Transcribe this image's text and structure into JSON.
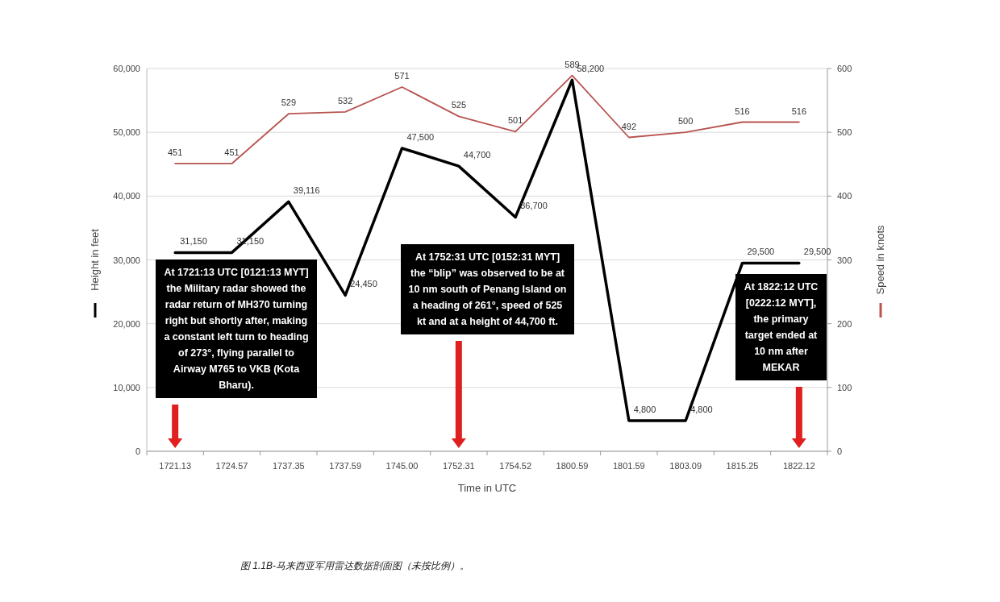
{
  "chart_data": {
    "type": "line",
    "categories": [
      "1721.13",
      "1724.57",
      "1737.35",
      "1737.59",
      "1745.00",
      "1752.31",
      "1754.52",
      "1800.59",
      "1801.59",
      "1803.09",
      "1815.25",
      "1822.12"
    ],
    "series": [
      {
        "type": "line",
        "color": "#000000",
        "axis": "y",
        "values": [
          31150,
          31150,
          39116,
          24450,
          47500,
          44700,
          36700,
          58200,
          4800,
          4800,
          29500,
          29500
        ],
        "value_labels": [
          "31,150",
          "31,150",
          "39,116",
          "24,450",
          "47,500",
          "44,700",
          "36,700",
          "58,200",
          "4,800",
          "4,800",
          "29,500",
          "29,500"
        ]
      },
      {
        "type": "line",
        "color": "#b85450",
        "axis": "y2",
        "values": [
          451,
          451,
          529,
          532,
          571,
          525,
          501,
          589,
          492,
          500,
          516,
          516
        ]
      }
    ],
    "xlabel": "Time in UTC",
    "ylabel": "Height in feet",
    "y2label": "Speed in knots",
    "ylim": [
      0,
      60000
    ],
    "yticks": [
      {
        "value": 0,
        "label": "0"
      },
      {
        "value": 10000,
        "label": "10,000"
      },
      {
        "value": 20000,
        "label": "20,000"
      },
      {
        "value": 30000,
        "label": "30,000"
      },
      {
        "value": 40000,
        "label": "40,000"
      },
      {
        "value": 50000,
        "label": "50,000"
      },
      {
        "value": 60000,
        "label": "60,000"
      }
    ],
    "y2lim": [
      0,
      600
    ],
    "y2ticks": [
      0,
      100,
      200,
      300,
      400,
      500,
      600
    ],
    "grid": "y",
    "data_labels": true,
    "annotations": [
      "At 1721:13 UTC [0121:13 MYT] the Military radar showed the radar return of MH370 turning right but shortly after, making a constant left turn to heading of 273°, flying parallel to Airway M765 to VKB (Kota Bharu).",
      "At 1752:31 UTC [0152:31 MYT] the “blip” was observed to be at 10 nm south of Penang Island on a heading of 261°, speed of 525 kt and at a height of 44,700 ft.",
      "At 1822:12 UTC [0222:12 MYT], the primary target ended at 10 nm after MEKAR",
      "图 1.1B-马来西亚军用雷达数据剖面图（未按比例）。"
    ]
  }
}
